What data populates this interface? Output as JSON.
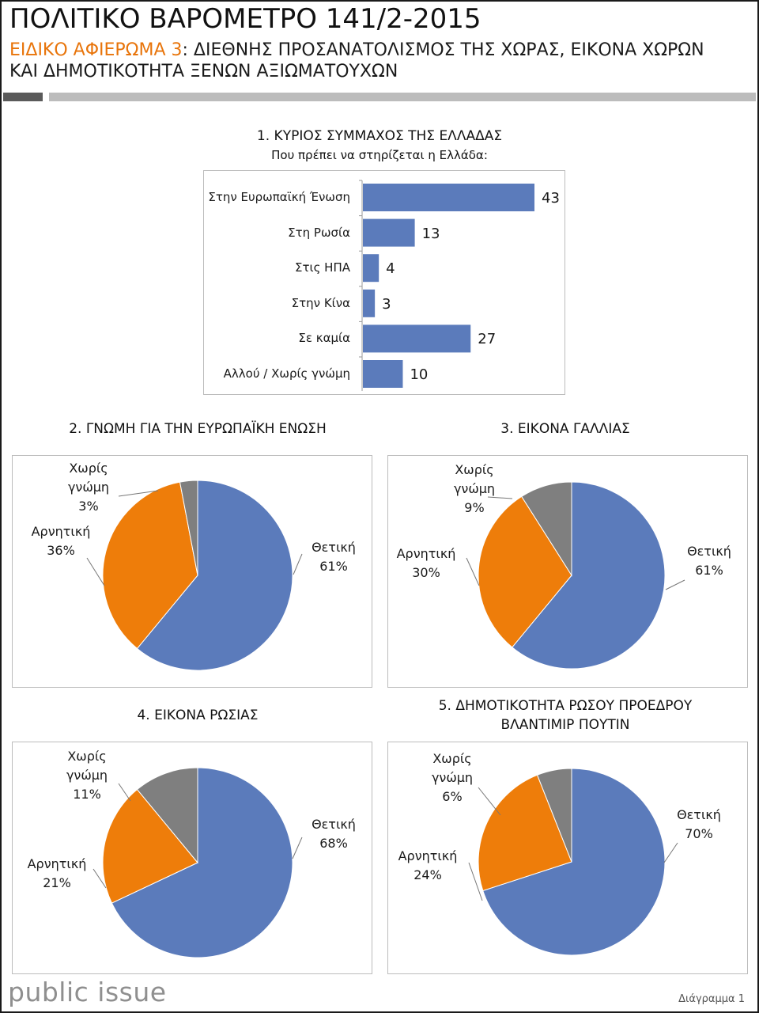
{
  "header": {
    "title": "ΠΟΛΙΤΙΚΟ ΒΑΡΟΜΕΤΡΟ 141/2-2015",
    "subtitle_accent": "ΕΙΔΙΚΟ ΑΦΙΕΡΩΜΑ 3",
    "subtitle_rest": ": ΔΙΕΘΝΗΣ ΠΡΟΣΑΝΑΤΟΛΙΣΜΟΣ ΤΗΣ ΧΩΡΑΣ, ΕΙΚΟΝΑ ΧΩΡΩΝ ΚΑΙ ΔΗΜΟΤΙΚΟΤΗΤΑ ΞΕΝΩΝ ΑΞΙΩΜΑΤΟΥΧΩΝ"
  },
  "colors": {
    "blue": "#5b7bbb",
    "orange": "#ee7d0a",
    "gray": "#7f7f7f",
    "accent": "#e8740a"
  },
  "chart_data": [
    {
      "type": "bar",
      "title": "1. ΚΥΡΙΟΣ ΣΥΜΜΑΧΟΣ ΤΗΣ ΕΛΛΑΔΑΣ",
      "subtitle": "Που πρέπει να στηρίζεται η Ελλάδα:",
      "categories": [
        "Στην Ευρωπαϊκή Ένωση",
        "Στη Ρωσία",
        "Στις ΗΠΑ",
        "Στην Κίνα",
        "Σε καμία",
        "Αλλού / Χωρίς γνώμη"
      ],
      "values": [
        43,
        13,
        4,
        3,
        27,
        10
      ],
      "xlim": [
        0,
        43
      ]
    },
    {
      "type": "pie",
      "title": "2. ΓΝΩΜΗ ΓΙΑ ΤΗΝ ΕΥΡΩΠΑΪΚΗ ΕΝΩΣΗ",
      "slices": [
        {
          "label": "Θετική",
          "value": 61,
          "text": "61%",
          "color": "#5b7bbb"
        },
        {
          "label": "Αρνητική",
          "value": 36,
          "text": "36%",
          "color": "#ee7d0a"
        },
        {
          "label": "Χωρίς γνώμη",
          "value": 3,
          "text": "3%",
          "color": "#7f7f7f"
        }
      ]
    },
    {
      "type": "pie",
      "title": "3. ΕΙΚΟΝΑ ΓΑΛΛΙΑΣ",
      "slices": [
        {
          "label": "Θετική",
          "value": 61,
          "text": "61%",
          "color": "#5b7bbb"
        },
        {
          "label": "Αρνητική",
          "value": 30,
          "text": "30%",
          "color": "#ee7d0a"
        },
        {
          "label": "Χωρίς γνώμη",
          "value": 9,
          "text": "9%",
          "color": "#7f7f7f"
        }
      ]
    },
    {
      "type": "pie",
      "title": "4. ΕΙΚΟΝΑ ΡΩΣΙΑΣ",
      "slices": [
        {
          "label": "Θετική",
          "value": 68,
          "text": "68%",
          "color": "#5b7bbb"
        },
        {
          "label": "Αρνητική",
          "value": 21,
          "text": "21%",
          "color": "#ee7d0a"
        },
        {
          "label": "Χωρίς γνώμη",
          "value": 11,
          "text": "11%",
          "color": "#7f7f7f"
        }
      ]
    },
    {
      "type": "pie",
      "title": "5. ΔΗΜΟΤΙΚΟΤΗΤΑ ΡΩΣΟΥ ΠΡΟΕΔΡΟΥ ΒΛΑΝΤΙΜΙΡ ΠΟΥΤΙΝ",
      "slices": [
        {
          "label": "Θετική",
          "value": 70,
          "text": "70%",
          "color": "#5b7bbb"
        },
        {
          "label": "Αρνητική",
          "value": 24,
          "text": "24%",
          "color": "#ee7d0a"
        },
        {
          "label": "Χωρίς γνώμη",
          "value": 6,
          "text": "6%",
          "color": "#7f7f7f"
        }
      ]
    }
  ],
  "footer": {
    "brand": "public issue",
    "note": "Διάγραμμα 1"
  }
}
